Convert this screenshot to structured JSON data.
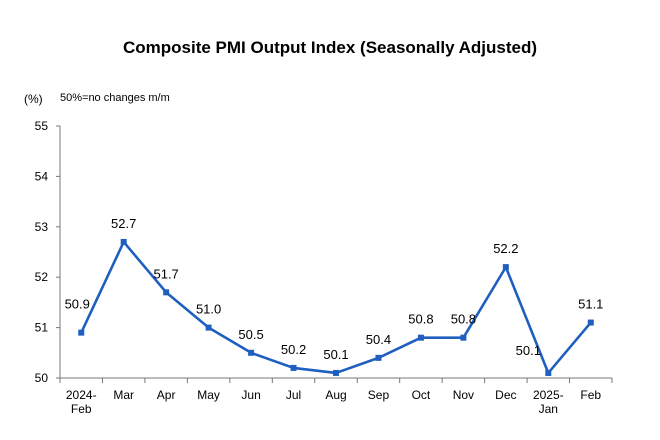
{
  "chart_data": {
    "type": "line",
    "title": "Composite PMI Output Index (Seasonally Adjusted)",
    "unit_label": "(%)",
    "note": "50%=no changes m/m",
    "categories": [
      [
        "2024-",
        "Feb"
      ],
      [
        "Mar"
      ],
      [
        "Apr"
      ],
      [
        "May"
      ],
      [
        "Jun"
      ],
      [
        "Jul"
      ],
      [
        "Aug"
      ],
      [
        "Sep"
      ],
      [
        "Oct"
      ],
      [
        "Nov"
      ],
      [
        "Dec"
      ],
      [
        "2025-",
        "Jan"
      ],
      [
        "Feb"
      ]
    ],
    "series": [
      {
        "values": [
          50.9,
          52.7,
          51.7,
          51.0,
          50.5,
          50.2,
          50.1,
          50.4,
          50.8,
          50.8,
          52.2,
          50.1,
          51.1
        ],
        "labels": [
          "50.9",
          "52.7",
          "51.7",
          "51.0",
          "50.5",
          "50.2",
          "50.1",
          "50.4",
          "50.8",
          "50.8",
          "52.2",
          "50.1",
          "51.1"
        ],
        "color": "#1f5fbf"
      }
    ],
    "ylim": [
      50,
      55
    ],
    "yticks": [
      "50",
      "51",
      "52",
      "53",
      "54",
      "55"
    ],
    "grid": false,
    "legend": "none"
  }
}
